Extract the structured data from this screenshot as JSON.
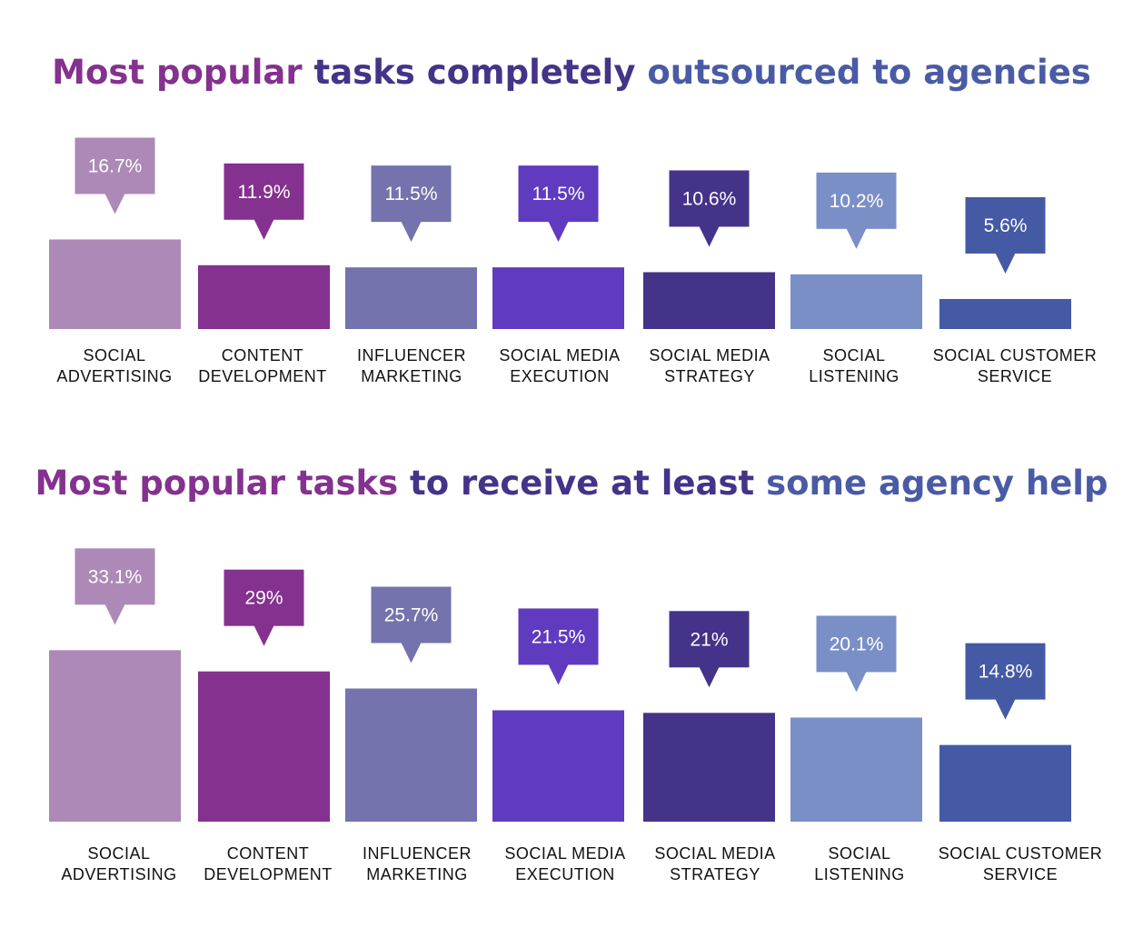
{
  "colors": [
    "#ad89b7",
    "#84318f",
    "#7473ad",
    "#603bbf",
    "#443389",
    "#7b8fc7",
    "#445aa5"
  ],
  "chart_data": [
    {
      "type": "bar",
      "title_parts": [
        {
          "text": "Most popular ",
          "color": "#84318f"
        },
        {
          "text": "tasks completely ",
          "color": "#443389"
        },
        {
          "text": "outsourced to agencies",
          "color": "#4a5ba5"
        }
      ],
      "categories": [
        [
          "SOCIAL",
          "ADVERTISING"
        ],
        [
          "CONTENT",
          "DEVELOPMENT"
        ],
        [
          "INFLUENCER",
          "MARKETING"
        ],
        [
          "SOCIAL MEDIA",
          "EXECUTION"
        ],
        [
          "SOCIAL MEDIA",
          "STRATEGY"
        ],
        [
          "SOCIAL",
          "LISTENING"
        ],
        [
          "SOCIAL CUSTOMER",
          "SERVICE"
        ]
      ],
      "values": [
        16.7,
        11.9,
        11.5,
        11.5,
        10.6,
        10.2,
        5.6
      ],
      "value_labels": [
        "16.7%",
        "11.9%",
        "11.5%",
        "11.5%",
        "10.6%",
        "10.2%",
        "5.6%"
      ]
    },
    {
      "type": "bar",
      "title_parts": [
        {
          "text": "Most popular tasks ",
          "color": "#84318f"
        },
        {
          "text": "to receive at least ",
          "color": "#443389"
        },
        {
          "text": "some agency help",
          "color": "#4a5ba5"
        }
      ],
      "categories": [
        [
          "SOCIAL",
          "ADVERTISING"
        ],
        [
          "CONTENT",
          "DEVELOPMENT"
        ],
        [
          "INFLUENCER",
          "MARKETING"
        ],
        [
          "SOCIAL MEDIA",
          "EXECUTION"
        ],
        [
          "SOCIAL MEDIA",
          "STRATEGY"
        ],
        [
          "SOCIAL",
          "LISTENING"
        ],
        [
          "SOCIAL CUSTOMER",
          "SERVICE"
        ]
      ],
      "values": [
        33.1,
        29,
        25.7,
        21.5,
        21,
        20.1,
        14.8
      ],
      "value_labels": [
        "33.1%",
        "29%",
        "25.7%",
        "21.5%",
        "21%",
        "20.1%",
        "14.8%"
      ]
    }
  ]
}
